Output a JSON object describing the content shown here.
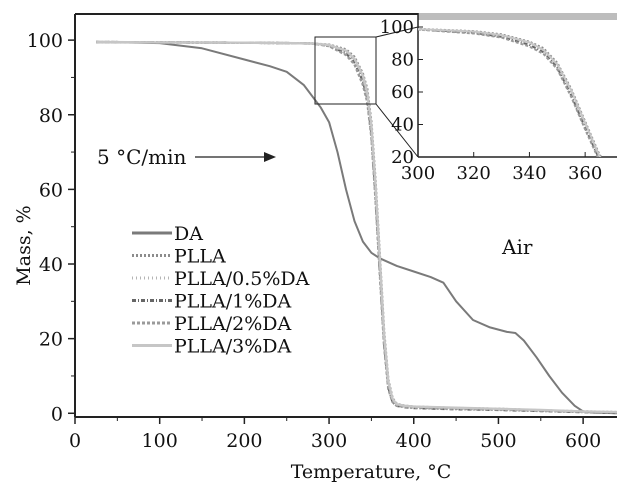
{
  "chart_data": {
    "type": "line",
    "xlabel": "Temperature, °C",
    "ylabel": "Mass, %",
    "xlim": [
      0,
      640
    ],
    "ylim": [
      -1,
      107
    ],
    "xticks": [
      0,
      100,
      200,
      300,
      400,
      500,
      600
    ],
    "yticks": [
      0,
      20,
      40,
      60,
      80,
      100
    ],
    "grid": false,
    "legend_position": "left-middle",
    "annotations": {
      "heating_rate": "5 °C/min",
      "atmosphere": "Air"
    },
    "series": [
      {
        "name": "DA",
        "color": "#7a7a7a",
        "dash": "solid",
        "x": [
          25,
          100,
          150,
          200,
          230,
          250,
          270,
          290,
          300,
          310,
          320,
          330,
          340,
          350,
          360,
          380,
          400,
          420,
          435,
          450,
          470,
          490,
          510,
          520,
          530,
          545,
          560,
          575,
          590,
          600,
          610,
          640
        ],
        "y": [
          99.5,
          99.2,
          97.8,
          94.8,
          93,
          91.5,
          88,
          82,
          78,
          70,
          60,
          51.5,
          46,
          43,
          41.5,
          39.5,
          38,
          36.5,
          35,
          30,
          25,
          23,
          21.8,
          21.5,
          19.5,
          15,
          10,
          5.5,
          2,
          0.5,
          0.2,
          0
        ]
      },
      {
        "name": "PLLA",
        "color": "#8c8c8c",
        "dash": "2,2",
        "x": [
          25,
          100,
          200,
          250,
          280,
          300,
          320,
          330,
          340,
          345,
          350,
          355,
          360,
          365,
          370,
          375,
          380,
          390,
          400,
          450,
          500,
          550,
          600,
          640
        ],
        "y": [
          99.5,
          99.4,
          99.3,
          99.2,
          99.1,
          98.8,
          97.5,
          95.5,
          91,
          87,
          78,
          62,
          42,
          22,
          9,
          4,
          2.5,
          2,
          1.8,
          1.4,
          1.2,
          0.8,
          0.5,
          0.3
        ]
      },
      {
        "name": "PLLA/0.5%DA",
        "color": "#b5b5b5",
        "dash": "1,3",
        "x": [
          25,
          100,
          200,
          250,
          280,
          300,
          320,
          330,
          340,
          345,
          350,
          355,
          360,
          365,
          370,
          375,
          380,
          390,
          400,
          450,
          500,
          550,
          600,
          640
        ],
        "y": [
          99.5,
          99.4,
          99.3,
          99.2,
          99.1,
          98.6,
          97,
          94.5,
          90,
          85.5,
          76,
          60,
          40,
          20,
          8,
          3.5,
          2.2,
          1.8,
          1.6,
          1.3,
          1,
          0.7,
          0.4,
          0.2
        ]
      },
      {
        "name": "PLLA/1%DA",
        "color": "#666666",
        "dash": "4,2,1,2",
        "x": [
          25,
          100,
          200,
          250,
          280,
          300,
          320,
          330,
          340,
          345,
          350,
          355,
          360,
          365,
          370,
          375,
          380,
          390,
          400,
          450,
          500,
          550,
          600,
          640
        ],
        "y": [
          99.5,
          99.4,
          99.3,
          99.2,
          99.1,
          98.5,
          96.5,
          94,
          89,
          84.5,
          75,
          58,
          38,
          19,
          7,
          3,
          2,
          1.6,
          1.4,
          1.1,
          0.9,
          0.6,
          0.3,
          0.1
        ]
      },
      {
        "name": "PLLA/2%DA",
        "color": "#9a9a9a",
        "dash": "3,2",
        "x": [
          25,
          100,
          200,
          250,
          280,
          300,
          320,
          330,
          340,
          345,
          350,
          355,
          360,
          365,
          370,
          375,
          380,
          390,
          400,
          450,
          500,
          550,
          600,
          640
        ],
        "y": [
          99.5,
          99.4,
          99.3,
          99.2,
          99.1,
          98.4,
          96,
          93.5,
          88,
          83.5,
          74,
          57,
          37,
          18,
          6.5,
          3,
          2,
          1.7,
          1.5,
          1.2,
          1,
          0.7,
          0.4,
          0.2
        ]
      },
      {
        "name": "PLLA/3%DA",
        "color": "#c6c6c6",
        "dash": "solid",
        "x": [
          25,
          100,
          200,
          250,
          280,
          300,
          320,
          330,
          340,
          345,
          350,
          355,
          360,
          365,
          370,
          375,
          380,
          390,
          400,
          450,
          500,
          550,
          600,
          640
        ],
        "y": [
          99.5,
          99.4,
          99.3,
          99.2,
          99.1,
          98.7,
          97.2,
          95,
          90.5,
          86,
          77,
          61,
          41,
          21,
          8.5,
          3.8,
          2.4,
          2,
          1.8,
          1.5,
          1.2,
          0.9,
          0.5,
          0.3
        ]
      }
    ],
    "inset": {
      "xlim": [
        300,
        370
      ],
      "ylim": [
        20,
        100
      ],
      "xticks": [
        300,
        320,
        340,
        360
      ],
      "yticks": [
        20,
        40,
        60,
        80,
        100
      ]
    }
  }
}
